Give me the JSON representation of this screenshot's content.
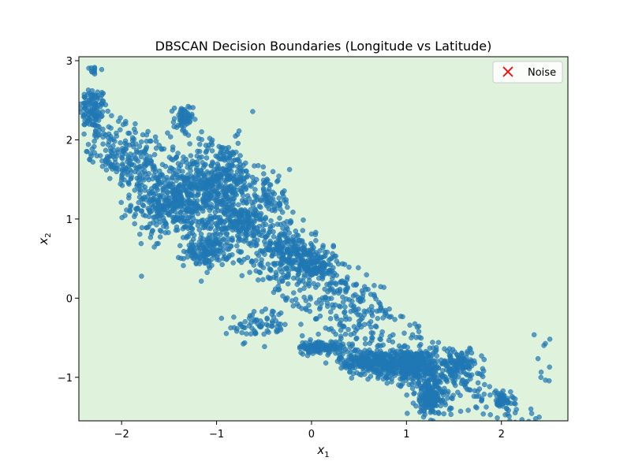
{
  "chart_data": {
    "type": "scatter",
    "title": "DBSCAN Decision Boundaries (Longitude vs Latitude)",
    "xlabel_base": "x",
    "xlabel_sub": "1",
    "ylabel_base": "x",
    "ylabel_sub": "2",
    "xlim": [
      -2.45,
      2.7
    ],
    "ylim": [
      -1.55,
      3.05
    ],
    "xticks": [
      -2,
      -1,
      0,
      1,
      2
    ],
    "yticks": [
      -1,
      0,
      1,
      2,
      3
    ],
    "xtick_labels": [
      "−2",
      "−1",
      "0",
      "1",
      "2"
    ],
    "ytick_labels": [
      "−1",
      "0",
      "1",
      "2",
      "3"
    ],
    "background_region_color": "#dff2dc",
    "point_color": "#1f77b4",
    "point_opacity": 0.7,
    "legend": {
      "position": "upper-right",
      "entries": [
        {
          "label": "Noise",
          "marker": "x",
          "color": "#ff0000"
        }
      ]
    },
    "series": [
      {
        "clusters": [
          {
            "cx": -2.3,
            "cy": 2.4,
            "sx": 0.07,
            "sy": 0.13,
            "n": 90
          },
          {
            "cx": -2.3,
            "cy": 2.88,
            "sx": 0.05,
            "sy": 0.04,
            "n": 12
          },
          {
            "cx": -1.45,
            "cy": 1.2,
            "sx": 0.22,
            "sy": 0.22,
            "n": 400
          },
          {
            "cx": -1.1,
            "cy": 0.6,
            "sx": 0.12,
            "sy": 0.1,
            "n": 150
          },
          {
            "cx": -1.35,
            "cy": 2.25,
            "sx": 0.05,
            "sy": 0.1,
            "n": 60
          },
          {
            "cx": -0.95,
            "cy": 1.5,
            "sx": 0.2,
            "sy": 0.25,
            "n": 350
          },
          {
            "cx": -0.75,
            "cy": 0.95,
            "sx": 0.15,
            "sy": 0.1,
            "n": 150
          },
          {
            "cx": -0.25,
            "cy": 0.6,
            "sx": 0.15,
            "sy": 0.15,
            "n": 200
          },
          {
            "cx": 0.05,
            "cy": 0.4,
            "sx": 0.12,
            "sy": 0.1,
            "n": 160
          },
          {
            "cx": 0.1,
            "cy": -0.62,
            "sx": 0.12,
            "sy": 0.04,
            "n": 120
          },
          {
            "cx": 0.6,
            "cy": -0.8,
            "sx": 0.15,
            "sy": 0.08,
            "n": 260
          },
          {
            "cx": 1.05,
            "cy": -0.85,
            "sx": 0.17,
            "sy": 0.1,
            "n": 380
          },
          {
            "cx": 1.25,
            "cy": -1.25,
            "sx": 0.08,
            "sy": 0.12,
            "n": 200
          },
          {
            "cx": 1.55,
            "cy": -0.85,
            "sx": 0.12,
            "sy": 0.1,
            "n": 120
          },
          {
            "cx": 2.0,
            "cy": -1.3,
            "sx": 0.06,
            "sy": 0.05,
            "n": 50
          },
          {
            "cx": -1.9,
            "cy": 1.75,
            "sx": 0.2,
            "sy": 0.15,
            "n": 120
          },
          {
            "cx": -0.45,
            "cy": 1.2,
            "sx": 0.12,
            "sy": 0.15,
            "n": 90
          },
          {
            "cx": 0.4,
            "cy": -0.15,
            "sx": 0.25,
            "sy": 0.18,
            "n": 90
          },
          {
            "cx": -0.55,
            "cy": -0.35,
            "sx": 0.15,
            "sy": 0.1,
            "n": 70
          },
          {
            "cx": 2.47,
            "cy": -0.75,
            "sx": 0.05,
            "sy": 0.25,
            "n": 10
          }
        ],
        "scattered": {
          "x_start": -2.4,
          "x_end": 2.6,
          "line_slope": -0.86,
          "line_intercept": 0.18,
          "spread": 0.45,
          "n": 700
        }
      }
    ]
  }
}
